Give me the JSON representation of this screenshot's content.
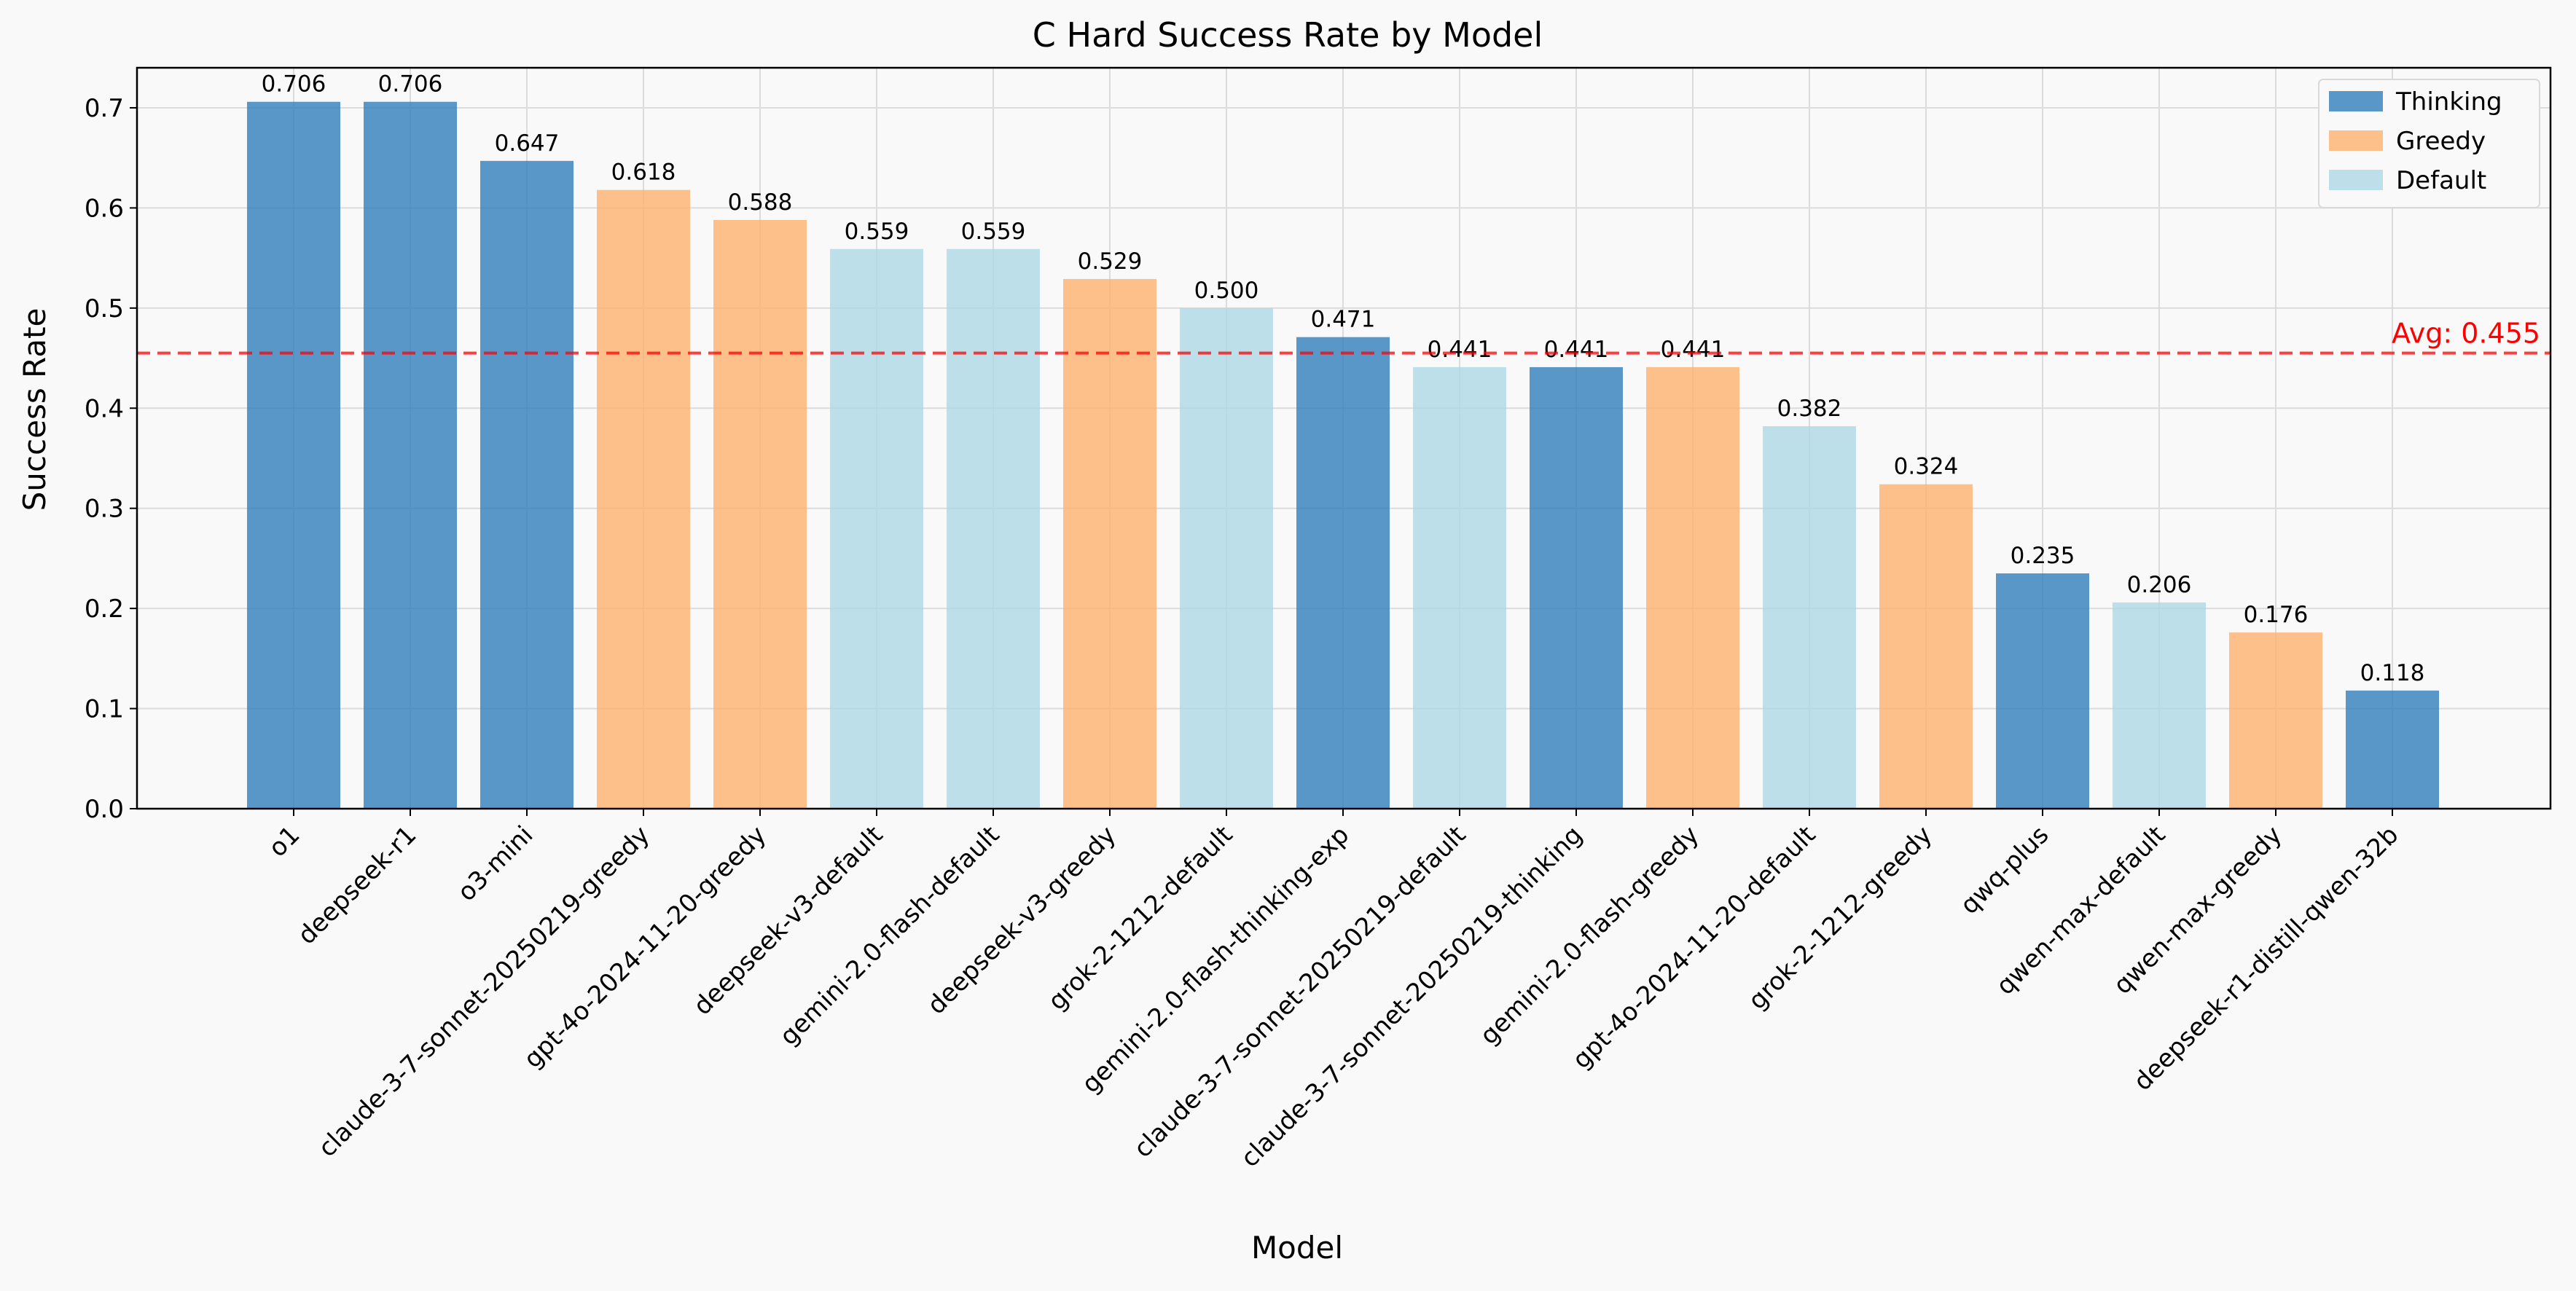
{
  "chart_data": {
    "type": "bar",
    "title": "C Hard Success Rate by Model",
    "xlabel": "Model",
    "ylabel": "Success Rate",
    "ylim": [
      0,
      0.74
    ],
    "yticks": [
      "0.0",
      "0.1",
      "0.2",
      "0.3",
      "0.4",
      "0.5",
      "0.6",
      "0.7"
    ],
    "grid": true,
    "legend_position": "top-right",
    "categories": [
      "o1",
      "deepseek-r1",
      "o3-mini",
      "claude-3-7-sonnet-20250219-greedy",
      "gpt-4o-2024-11-20-greedy",
      "deepseek-v3-default",
      "gemini-2.0-flash-default",
      "deepseek-v3-greedy",
      "grok-2-1212-default",
      "gemini-2.0-flash-thinking-exp",
      "claude-3-7-sonnet-20250219-default",
      "claude-3-7-sonnet-20250219-thinking",
      "gemini-2.0-flash-greedy",
      "gpt-4o-2024-11-20-default",
      "grok-2-1212-greedy",
      "qwq-plus",
      "qwen-max-default",
      "qwen-max-greedy",
      "deepseek-r1-distill-qwen-32b"
    ],
    "values": [
      0.706,
      0.706,
      0.647,
      0.618,
      0.588,
      0.559,
      0.559,
      0.529,
      0.5,
      0.471,
      0.441,
      0.441,
      0.441,
      0.382,
      0.324,
      0.235,
      0.206,
      0.176,
      0.118
    ],
    "value_labels": [
      "0.706",
      "0.706",
      "0.647",
      "0.618",
      "0.588",
      "0.559",
      "0.559",
      "0.529",
      "0.500",
      "0.471",
      "0.441",
      "0.441",
      "0.441",
      "0.382",
      "0.324",
      "0.235",
      "0.206",
      "0.176",
      "0.118"
    ],
    "groups": [
      "Thinking",
      "Thinking",
      "Thinking",
      "Greedy",
      "Greedy",
      "Default",
      "Default",
      "Greedy",
      "Default",
      "Thinking",
      "Default",
      "Thinking",
      "Greedy",
      "Default",
      "Greedy",
      "Thinking",
      "Default",
      "Greedy",
      "Thinking"
    ],
    "legend": [
      {
        "name": "Thinking",
        "color": "#2f7ebc"
      },
      {
        "name": "Greedy",
        "color": "#ffb26e"
      },
      {
        "name": "Default",
        "color": "#add8e6"
      }
    ],
    "average": {
      "value": 0.455,
      "label": "Avg: 0.455",
      "color": "#ff0000"
    }
  }
}
